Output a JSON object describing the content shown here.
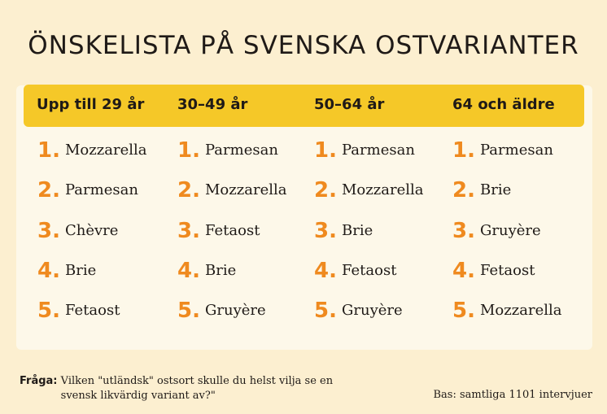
{
  "title": "ÖNSKELISTA PÅ SVENSKA OSTVARIANTER",
  "columns": [
    {
      "heading": "Upp till 29 år",
      "items": [
        "Mozzarella",
        "Parmesan",
        "Chèvre",
        "Brie",
        "Fetaost"
      ]
    },
    {
      "heading": "30–49 år",
      "items": [
        "Parmesan",
        "Mozzarella",
        "Fetaost",
        "Brie",
        "Gruyère"
      ]
    },
    {
      "heading": "50–64 år",
      "items": [
        "Parmesan",
        "Mozzarella",
        "Brie",
        "Fetaost",
        "Gruyère"
      ]
    },
    {
      "heading": "64 och äldre",
      "items": [
        "Parmesan",
        "Brie",
        "Gruyère",
        "Fetaost",
        "Mozzarella"
      ]
    }
  ],
  "numbers": [
    "1.",
    "2.",
    "3.",
    "4.",
    "5."
  ],
  "footer": {
    "question_label": "Fråga:",
    "question_text": "Vilken \"utländsk\" ostsort skulle du helst vilja se en svensk likvärdig variant av?\"",
    "base": "Bas: samtliga 1101 intervjuer"
  },
  "colors": {
    "background": "#fcefd0",
    "header": "#f5c828",
    "number": "#ef8a1f"
  }
}
